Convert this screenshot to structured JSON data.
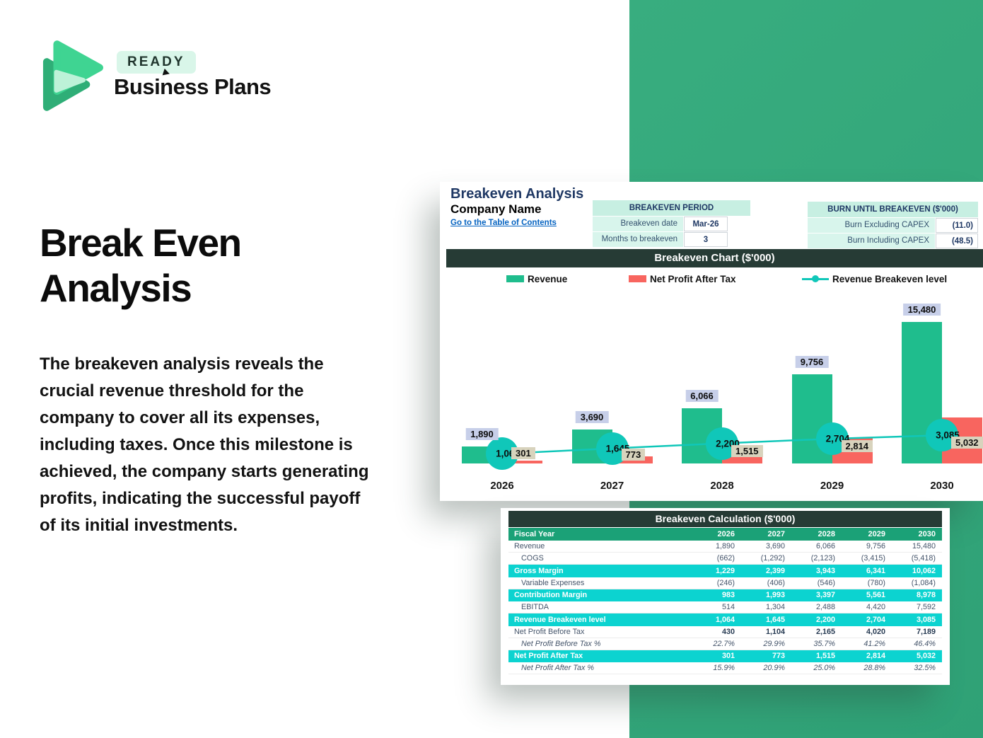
{
  "brand": {
    "badge": "READY",
    "wordmark": "Business Plans"
  },
  "hero": {
    "title": "Break Even Analysis",
    "description": "The breakeven analysis reveals the crucial revenue threshold for the company to cover all its expenses, including taxes. Once this milestone is achieved, the company starts generating profits, indicating the successful payoff of its initial investments."
  },
  "sheet": {
    "title": "Breakeven Analysis",
    "company": "Company Name",
    "link": "Go to the Table of Contents",
    "breakeven_period": {
      "header": "BREAKEVEN PERIOD",
      "rows": [
        {
          "label": "Breakeven date",
          "value": "Mar-26"
        },
        {
          "label": "Months to breakeven",
          "value": "3"
        }
      ]
    },
    "burn": {
      "header": "BURN UNTIL BREAKEVEN ($'000)",
      "rows": [
        {
          "label": "Burn Excluding CAPEX",
          "value": "(11.0)"
        },
        {
          "label": "Burn Including CAPEX",
          "value": "(48.5)"
        }
      ]
    }
  },
  "chart_data": {
    "type": "bar",
    "title": "Breakeven Chart ($'000)",
    "categories": [
      "2026",
      "2027",
      "2028",
      "2029",
      "2030"
    ],
    "series": [
      {
        "name": "Revenue",
        "type": "bar",
        "color": "#1fbd8d",
        "values": [
          1890,
          3690,
          6066,
          9756,
          15480
        ],
        "labels": [
          "1,890",
          "3,690",
          "6,066",
          "9,756",
          "15,480"
        ]
      },
      {
        "name": "Net Profit After Tax",
        "type": "bar",
        "color": "#f8655f",
        "values": [
          301,
          773,
          1515,
          2814,
          5032
        ],
        "labels": [
          "301",
          "773",
          "1,515",
          "2,814",
          "5,032"
        ]
      },
      {
        "name": "Revenue Breakeven level",
        "type": "line",
        "color": "#10c7b9",
        "values": [
          1064,
          1645,
          2200,
          2704,
          3085
        ],
        "labels": [
          "1,064",
          "1,645",
          "2,200",
          "2,704",
          "3,085"
        ]
      }
    ],
    "ylim": [
      0,
      15480
    ],
    "grid": false,
    "legend_position": "top"
  },
  "calc_table": {
    "title": "Breakeven Calculation ($'000)",
    "header": {
      "label": "Fiscal Year",
      "years": [
        "2026",
        "2027",
        "2028",
        "2029",
        "2030"
      ]
    },
    "rows": [
      {
        "label": "Revenue",
        "style": "plain",
        "values": [
          "1,890",
          "3,690",
          "6,066",
          "9,756",
          "15,480"
        ]
      },
      {
        "label": "COGS",
        "style": "indent",
        "values": [
          "(662)",
          "(1,292)",
          "(2,123)",
          "(3,415)",
          "(5,418)"
        ]
      },
      {
        "label": "Gross Margin",
        "style": "highlight",
        "values": [
          "1,229",
          "2,399",
          "3,943",
          "6,341",
          "10,062"
        ]
      },
      {
        "label": "Variable Expenses",
        "style": "indent",
        "values": [
          "(246)",
          "(406)",
          "(546)",
          "(780)",
          "(1,084)"
        ]
      },
      {
        "label": "Contribution Margin",
        "style": "highlight",
        "values": [
          "983",
          "1,993",
          "3,397",
          "5,561",
          "8,978"
        ]
      },
      {
        "label": "EBITDA",
        "style": "indent",
        "values": [
          "514",
          "1,304",
          "2,488",
          "4,420",
          "7,592"
        ]
      },
      {
        "label": "Revenue Breakeven level",
        "style": "highlight",
        "values": [
          "1,064",
          "1,645",
          "2,200",
          "2,704",
          "3,085"
        ]
      },
      {
        "label": "Net Profit Before Tax",
        "style": "bold",
        "values": [
          "430",
          "1,104",
          "2,165",
          "4,020",
          "7,189"
        ]
      },
      {
        "label": "Net Profit Before Tax %",
        "style": "percent",
        "values": [
          "22.7%",
          "29.9%",
          "35.7%",
          "41.2%",
          "46.4%"
        ]
      },
      {
        "label": "Net Profit After Tax",
        "style": "highlight",
        "values": [
          "301",
          "773",
          "1,515",
          "2,814",
          "5,032"
        ]
      },
      {
        "label": "Net Profit After Tax %",
        "style": "percent",
        "values": [
          "15.9%",
          "20.9%",
          "25.0%",
          "28.8%",
          "32.5%"
        ]
      }
    ]
  },
  "colors": {
    "brand_green": "#2fa176",
    "logo_front_green": "#3fd492",
    "logo_back_green": "#2fae77",
    "logo_mint": "#bdf2d8",
    "bar_green": "#1fbd8d",
    "bar_red": "#f8655f",
    "line_teal": "#10c7b9",
    "highlight_cyan": "#0cd3d0",
    "table_header_green": "#1ba177",
    "titlebar_dark": "#263b35",
    "revenue_label_bg": "#c7cfe9",
    "npat_label_bg": "#d8d3bd",
    "mint_header": "#c7efe2",
    "mint_cell": "#d8f5ec",
    "link_blue": "#0563c1",
    "navy": "#1f3864"
  }
}
